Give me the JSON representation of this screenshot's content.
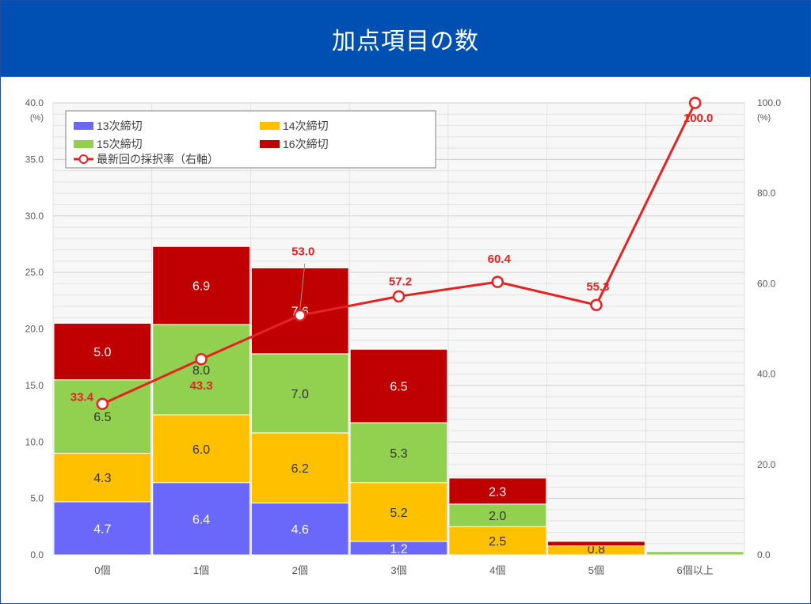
{
  "header": {
    "title": "加点項目の数"
  },
  "colors": {
    "header_bg": "#0050b3",
    "s13": "#6a67fb",
    "s14": "#ffc000",
    "s15": "#92d050",
    "s16": "#c00000",
    "rate_line": "#e52323"
  },
  "chart_data": {
    "type": "bar",
    "stacked": true,
    "categories": [
      "0個",
      "1個",
      "2個",
      "3個",
      "4個",
      "5個",
      "6個以上"
    ],
    "series": [
      {
        "name": "13次締切",
        "values": [
          4.7,
          6.4,
          4.6,
          1.2,
          0.0,
          0.0,
          0.0
        ],
        "labels": [
          "4.7",
          "6.4",
          "4.6",
          "1.2",
          "",
          "",
          ""
        ]
      },
      {
        "name": "14次締切",
        "values": [
          4.3,
          6.0,
          6.2,
          5.2,
          2.5,
          0.8,
          0.0
        ],
        "labels": [
          "4.3",
          "6.0",
          "6.2",
          "5.2",
          "2.5",
          "0.8",
          ""
        ]
      },
      {
        "name": "15次締切",
        "values": [
          6.5,
          8.0,
          7.0,
          5.3,
          2.0,
          0.0,
          0.3
        ],
        "labels": [
          "6.5",
          "8.0",
          "7.0",
          "5.3",
          "2.0",
          "",
          ""
        ]
      },
      {
        "name": "16次締切",
        "values": [
          5.0,
          6.9,
          7.6,
          6.5,
          2.3,
          0.4,
          0.0
        ],
        "labels": [
          "5.0",
          "6.9",
          "7.6",
          "6.5",
          "2.3",
          "",
          ""
        ]
      }
    ],
    "line_series": {
      "name": "最新回の採択率（右軸）",
      "axis": "right",
      "values": [
        33.4,
        43.3,
        53.0,
        57.2,
        60.4,
        55.3,
        100.0
      ],
      "labels": [
        "33.4",
        "43.3",
        "53.0",
        "57.2",
        "60.4",
        "55.3",
        "100.0"
      ]
    },
    "left_axis": {
      "ylim": [
        0,
        40
      ],
      "ticks": [
        "0.0",
        "5.0",
        "10.0",
        "15.0",
        "20.0",
        "25.0",
        "30.0",
        "35.0",
        "40.0"
      ],
      "unit": "(%)"
    },
    "right_axis": {
      "ylim": [
        0,
        100
      ],
      "ticks": [
        "0.0",
        "20.0",
        "40.0",
        "60.0",
        "80.0",
        "100.0"
      ],
      "unit": "(%)"
    },
    "grid": true,
    "legend_position": "top-left"
  }
}
